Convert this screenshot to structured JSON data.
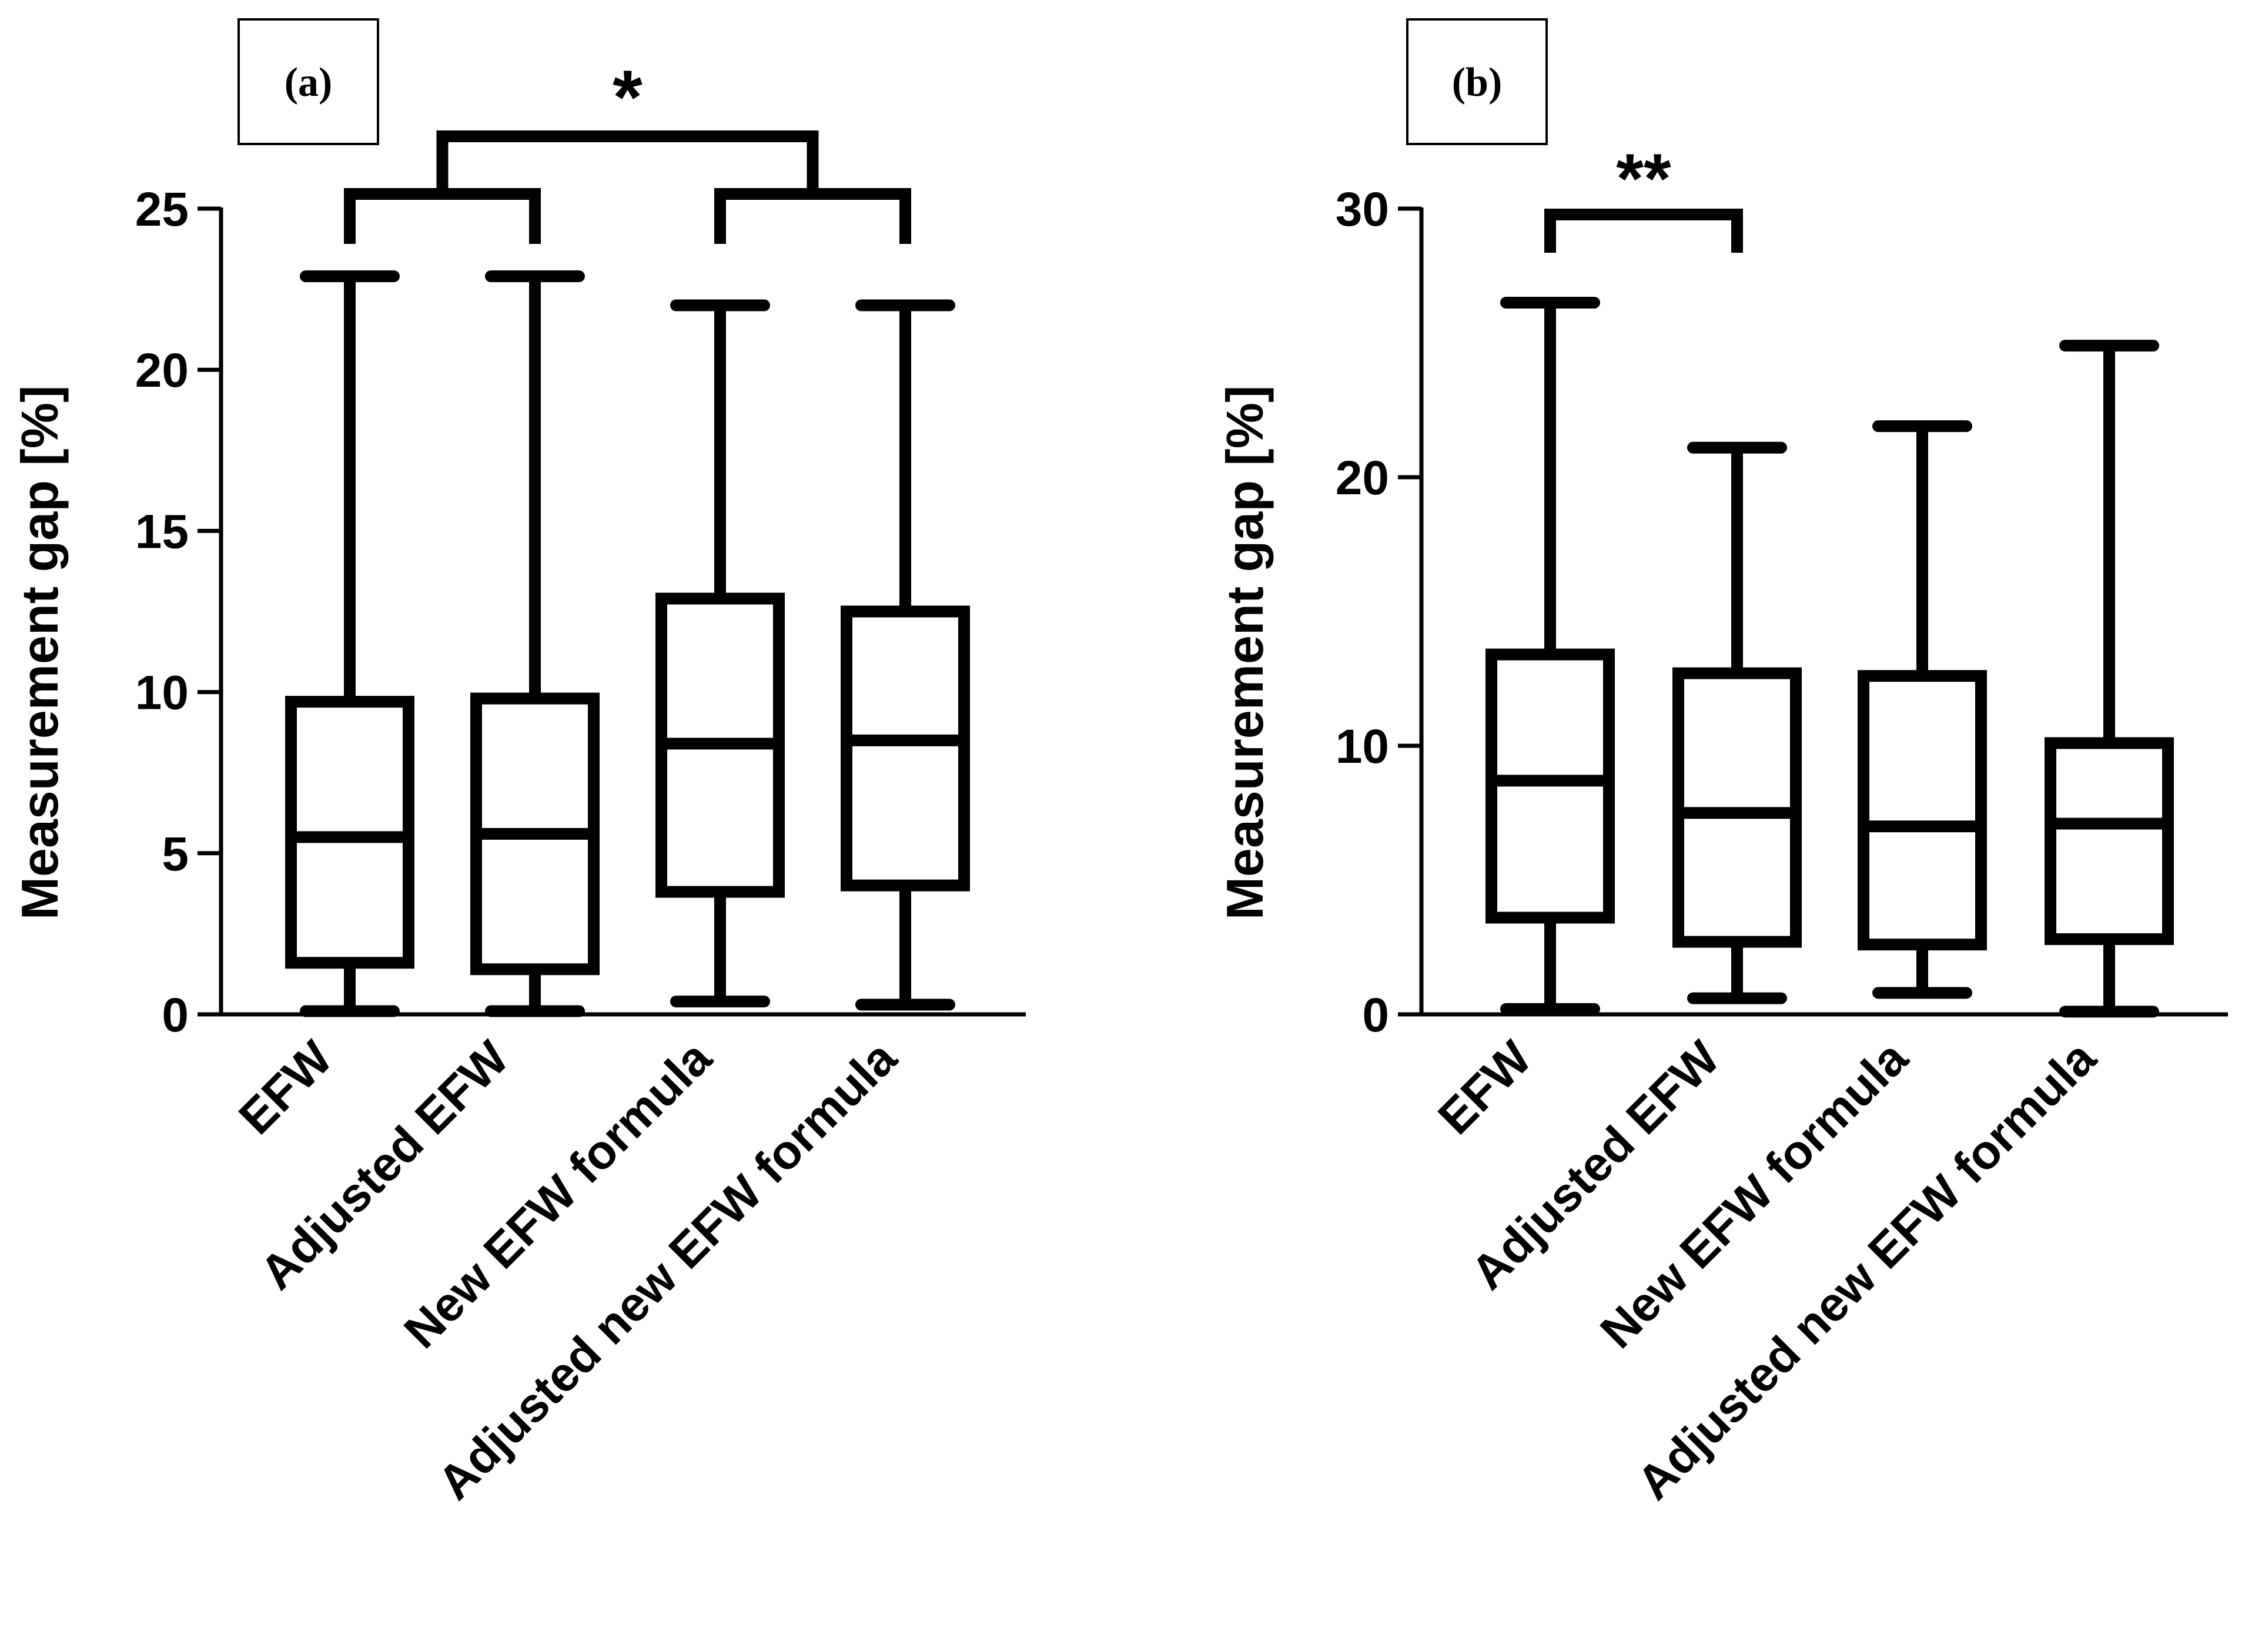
{
  "chart_data": [
    {
      "type": "box",
      "panel_label": "(a)",
      "ylabel": "Measurement gap [%]",
      "xlabel": "",
      "ylim": [
        0,
        25
      ],
      "yticks": [
        0,
        5,
        10,
        15,
        20,
        25
      ],
      "categories": [
        "EFW",
        "Adjusted EFW",
        "New EFW formula",
        "Adjusted new EFW formula"
      ],
      "boxes": [
        {
          "min": 0.1,
          "q1": 1.6,
          "median": 5.5,
          "q3": 9.7,
          "max": 22.9
        },
        {
          "min": 0.1,
          "q1": 1.4,
          "median": 5.6,
          "q3": 9.8,
          "max": 22.9
        },
        {
          "min": 0.4,
          "q1": 3.8,
          "median": 8.4,
          "q3": 12.9,
          "max": 22.0
        },
        {
          "min": 0.3,
          "q1": 4.0,
          "median": 8.5,
          "q3": 12.5,
          "max": 22.0
        }
      ],
      "significance": [
        {
          "label": "*",
          "left_group": [
            0,
            1
          ],
          "right_group": [
            2,
            3
          ]
        }
      ]
    },
    {
      "type": "box",
      "panel_label": "(b)",
      "ylabel": "Measurement gap [%]",
      "xlabel": "",
      "ylim": [
        0,
        30
      ],
      "yticks": [
        0,
        10,
        20,
        30
      ],
      "categories": [
        "EFW",
        "Adjusted EFW",
        "New EFW formula",
        "Adjusted new EFW formula"
      ],
      "boxes": [
        {
          "min": 0.2,
          "q1": 3.6,
          "median": 8.7,
          "q3": 13.4,
          "max": 26.5
        },
        {
          "min": 0.6,
          "q1": 2.7,
          "median": 7.5,
          "q3": 12.7,
          "max": 21.1
        },
        {
          "min": 0.8,
          "q1": 2.6,
          "median": 7.0,
          "q3": 12.6,
          "max": 21.9
        },
        {
          "min": 0.1,
          "q1": 2.8,
          "median": 7.1,
          "q3": 10.1,
          "max": 24.9
        }
      ],
      "significance": [
        {
          "label": "**",
          "left_group": [
            0
          ],
          "right_group": [
            1
          ]
        }
      ]
    }
  ]
}
